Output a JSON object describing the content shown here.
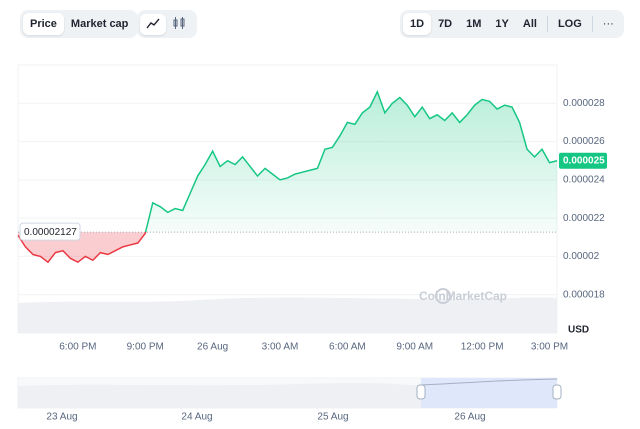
{
  "toolbar": {
    "view_tabs": [
      "Price",
      "Market cap"
    ],
    "ranges": [
      "1D",
      "7D",
      "1M",
      "1Y",
      "All",
      "LOG",
      "···"
    ]
  },
  "chart_data": {
    "type": "line",
    "categories": [
      null,
      null,
      null,
      null,
      null,
      null,
      null,
      null,
      "6:00 PM",
      null,
      null,
      null,
      null,
      null,
      null,
      null,
      null,
      "9:00 PM",
      null,
      null,
      null,
      null,
      null,
      null,
      null,
      null,
      "26 Aug",
      null,
      null,
      null,
      null,
      null,
      null,
      null,
      null,
      "3:00 AM",
      null,
      null,
      null,
      null,
      null,
      null,
      null,
      null,
      "6:00 AM",
      null,
      null,
      null,
      null,
      null,
      null,
      null,
      null,
      "9:00 AM",
      null,
      null,
      null,
      null,
      null,
      null,
      null,
      null,
      "12:00 PM",
      null,
      null,
      null,
      null,
      null,
      null,
      null,
      null,
      "3:00 PM",
      null
    ],
    "series": [
      {
        "name": "Price",
        "values": [
          2.11e-05,
          2.05e-05,
          2.01e-05,
          2e-05,
          1.97e-05,
          2.02e-05,
          2.03e-05,
          1.99e-05,
          1.97e-05,
          2e-05,
          1.98e-05,
          2.02e-05,
          2.01e-05,
          2.03e-05,
          2.05e-05,
          2.06e-05,
          2.07e-05,
          2.12e-05,
          2.28e-05,
          2.26e-05,
          2.23e-05,
          2.25e-05,
          2.24e-05,
          2.33e-05,
          2.42e-05,
          2.48e-05,
          2.55e-05,
          2.47e-05,
          2.5e-05,
          2.48e-05,
          2.52e-05,
          2.47e-05,
          2.42e-05,
          2.46e-05,
          2.43e-05,
          2.4e-05,
          2.41e-05,
          2.43e-05,
          2.44e-05,
          2.45e-05,
          2.46e-05,
          2.56e-05,
          2.57e-05,
          2.63e-05,
          2.7e-05,
          2.69e-05,
          2.75e-05,
          2.78e-05,
          2.86e-05,
          2.75e-05,
          2.8e-05,
          2.83e-05,
          2.79e-05,
          2.73e-05,
          2.78e-05,
          2.72e-05,
          2.74e-05,
          2.71e-05,
          2.75e-05,
          2.7e-05,
          2.74e-05,
          2.79e-05,
          2.82e-05,
          2.81e-05,
          2.77e-05,
          2.79e-05,
          2.78e-05,
          2.7e-05,
          2.56e-05,
          2.52e-05,
          2.56e-05,
          2.49e-05,
          2.5e-05
        ]
      }
    ],
    "up_color": "#16c784",
    "down_color": "#ea3943",
    "baseline": 2.127e-05,
    "ylim": [
      1.6e-05,
      3e-05
    ],
    "yticks": [
      1.8e-05,
      2e-05,
      2.2e-05,
      2.4e-05,
      2.6e-05,
      2.8e-05
    ],
    "currency": "USD",
    "watermark": "CoinMarketCap",
    "navigator_labels": [
      "23 Aug",
      "24 Aug",
      "25 Aug",
      "26 Aug"
    ]
  }
}
